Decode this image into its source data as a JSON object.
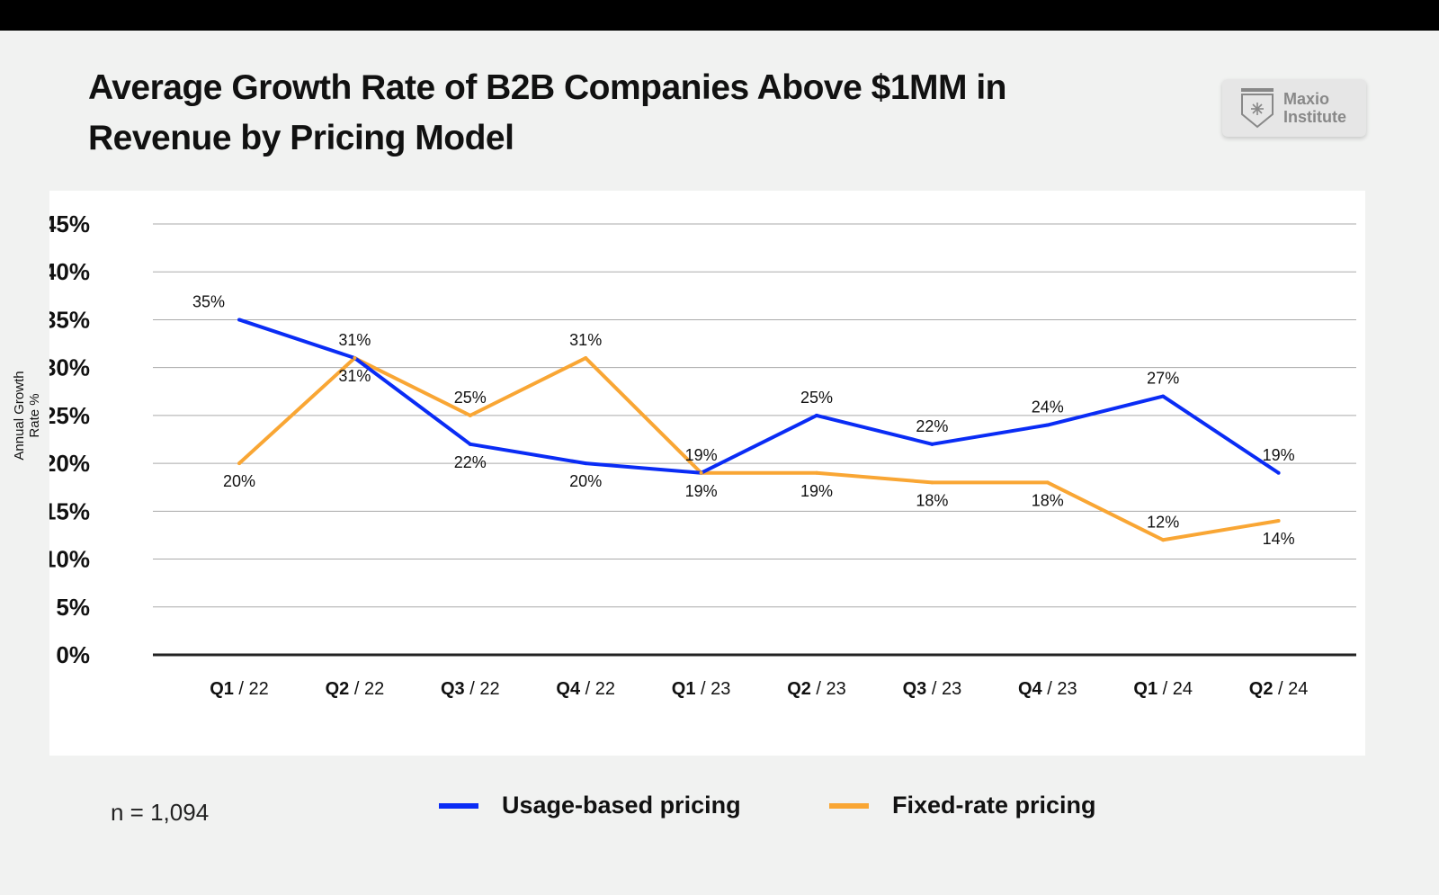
{
  "title": "Average Growth Rate of B2B Companies Above $1MM in Revenue by Pricing Model",
  "logo": {
    "line1": "Maxio",
    "line2": "Institute"
  },
  "sample_size": "n = 1,094",
  "colors": {
    "usage": "#0a2cf5",
    "fixed": "#f9a634",
    "background": "#f1f2f1"
  },
  "chart_data": {
    "type": "line",
    "title": "Average Growth Rate of B2B Companies Above $1MM in Revenue by Pricing Model",
    "ylabel": "Annual Growth Rate %",
    "xlabel": "",
    "ylim": [
      0,
      45
    ],
    "yticks": [
      "0%",
      "5%",
      "10%",
      "15%",
      "20%",
      "25%",
      "30%",
      "35%",
      "40%",
      "45%"
    ],
    "grid": true,
    "legend": "bottom",
    "categories": [
      {
        "q": "Q1",
        "y": "22"
      },
      {
        "q": "Q2",
        "y": "22"
      },
      {
        "q": "Q3",
        "y": "22"
      },
      {
        "q": "Q4",
        "y": "22"
      },
      {
        "q": "Q1",
        "y": "23"
      },
      {
        "q": "Q2",
        "y": "23"
      },
      {
        "q": "Q3",
        "y": "23"
      },
      {
        "q": "Q4",
        "y": "23"
      },
      {
        "q": "Q1",
        "y": "24"
      },
      {
        "q": "Q2",
        "y": "24"
      }
    ],
    "series": [
      {
        "name": "Usage-based pricing",
        "color": "#0a2cf5",
        "values": [
          35,
          31,
          22,
          20,
          19,
          25,
          22,
          24,
          27,
          19
        ]
      },
      {
        "name": "Fixed-rate pricing",
        "color": "#f9a634",
        "values": [
          20,
          31,
          25,
          31,
          19,
          19,
          18,
          18,
          12,
          14
        ]
      }
    ]
  }
}
